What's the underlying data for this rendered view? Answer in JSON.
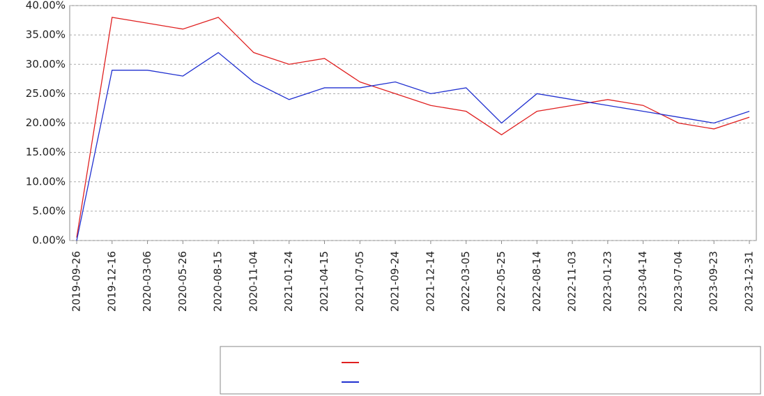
{
  "chart_data": {
    "type": "line",
    "categories": [
      "2019-09-26",
      "2019-12-16",
      "2020-03-06",
      "2020-05-26",
      "2020-08-15",
      "2020-11-04",
      "2021-01-24",
      "2021-04-15",
      "2021-07-05",
      "2021-09-24",
      "2021-12-14",
      "2022-03-05",
      "2022-05-25",
      "2022-08-14",
      "2022-11-03",
      "2023-01-23",
      "2023-04-14",
      "2023-07-04",
      "2023-09-23",
      "2023-12-31"
    ],
    "series": [
      {
        "color": "#e02020",
        "values": [
          0.5,
          38,
          37,
          36,
          38,
          32,
          30,
          31,
          27,
          25,
          23,
          22,
          18,
          22,
          23,
          24,
          23,
          20,
          19,
          21
        ]
      },
      {
        "color": "#2030d0",
        "values": [
          0,
          29,
          29,
          28,
          32,
          27,
          24,
          26,
          26,
          27,
          25,
          26,
          20,
          25,
          24,
          23,
          22,
          21,
          20,
          22
        ]
      }
    ],
    "ylim": [
      0,
      40
    ],
    "yticks": [
      {
        "value": 0,
        "label": "0.00%"
      },
      {
        "value": 5,
        "label": "5.00%"
      },
      {
        "value": 10,
        "label": "10.00%"
      },
      {
        "value": 15,
        "label": "15.00%"
      },
      {
        "value": 20,
        "label": "20.00%"
      },
      {
        "value": 25,
        "label": "25.00%"
      },
      {
        "value": 30,
        "label": "30.00%"
      },
      {
        "value": 35,
        "label": "35.00%"
      },
      {
        "value": 40,
        "label": "40.00%"
      }
    ],
    "grid": true
  }
}
